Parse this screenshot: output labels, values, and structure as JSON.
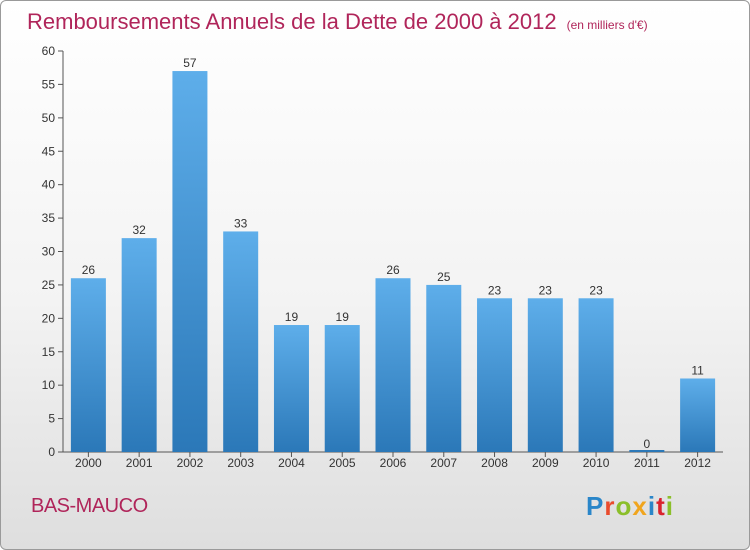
{
  "header": {
    "title": "Remboursements Annuels de la Dette de 2000 à 2012",
    "subtitle": "(en milliers d'€)"
  },
  "footer": {
    "commune": "BAS-MAUCO",
    "logo_text": "Proxiti",
    "logo_colors": [
      "#2a86c9",
      "#e94b2c",
      "#8bbf2a",
      "#f0a51e",
      "#2a86c9",
      "#d9232e",
      "#8bbf2a"
    ]
  },
  "chart_data": {
    "type": "bar",
    "title": "Remboursements Annuels de la Dette de 2000 à 2012",
    "categories": [
      "2000",
      "2001",
      "2002",
      "2003",
      "2004",
      "2005",
      "2006",
      "2007",
      "2008",
      "2009",
      "2010",
      "2011",
      "2012"
    ],
    "values": [
      26,
      32,
      57,
      33,
      19,
      19,
      26,
      25,
      23,
      23,
      23,
      0,
      11
    ],
    "ylim": [
      0,
      60
    ],
    "yticks": [
      0,
      5,
      10,
      15,
      20,
      25,
      30,
      35,
      40,
      45,
      50,
      55,
      60
    ],
    "grid": false,
    "bar_color_top": "#5eaeea",
    "bar_color_bottom": "#2b78b8"
  }
}
